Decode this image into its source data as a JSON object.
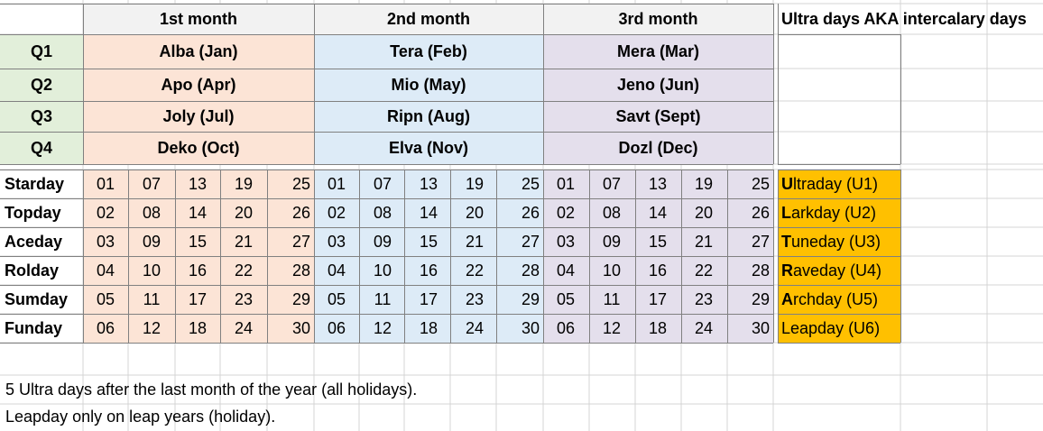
{
  "header": {
    "month1": "1st month",
    "month2": "2nd month",
    "month3": "3rd month",
    "ultra_title": "Ultra days AKA intercalary days"
  },
  "quarters": [
    {
      "label": "Q1",
      "m1": "Alba (Jan)",
      "m2": "Tera (Feb)",
      "m3": "Mera (Mar)"
    },
    {
      "label": "Q2",
      "m1": "Apo (Apr)",
      "m2": "Mio (May)",
      "m3": "Jeno (Jun)"
    },
    {
      "label": "Q3",
      "m1": "Joly (Jul)",
      "m2": "Ripn (Aug)",
      "m3": "Savt (Sept)"
    },
    {
      "label": "Q4",
      "m1": "Deko (Oct)",
      "m2": "Elva (Nov)",
      "m3": "Dozl (Dec)"
    }
  ],
  "weekdays": [
    {
      "name": "Starday",
      "days": [
        "01",
        "07",
        "13",
        "19",
        "25"
      ],
      "ultra_initial": "U",
      "ultra_rest": "ltraday (U1)"
    },
    {
      "name": "Topday",
      "days": [
        "02",
        "08",
        "14",
        "20",
        "26"
      ],
      "ultra_initial": "L",
      "ultra_rest": "arkday (U2)"
    },
    {
      "name": "Aceday",
      "days": [
        "03",
        "09",
        "15",
        "21",
        "27"
      ],
      "ultra_initial": "T",
      "ultra_rest": "uneday (U3)"
    },
    {
      "name": "Rolday",
      "days": [
        "04",
        "10",
        "16",
        "22",
        "28"
      ],
      "ultra_initial": "R",
      "ultra_rest": "aveday (U4)"
    },
    {
      "name": "Sumday",
      "days": [
        "05",
        "11",
        "17",
        "23",
        "29"
      ],
      "ultra_initial": "A",
      "ultra_rest": "rchday (U5)"
    },
    {
      "name": "Funday",
      "days": [
        "06",
        "12",
        "18",
        "24",
        "30"
      ],
      "ultra_initial": "",
      "ultra_rest": "Leapday (U6)"
    }
  ],
  "notes": {
    "line1": "5 Ultra days after the last month of the year (all holidays).",
    "line2": "Leapday only on leap years (holiday)."
  },
  "colors": {
    "month1_fill": "#fce4d6",
    "month2_fill": "#ddebf7",
    "month3_fill": "#e4dfec",
    "quarter_fill": "#e2efda",
    "ultra_fill": "#ffc000",
    "gridline": "#d4d4d4",
    "border": "#808080"
  }
}
